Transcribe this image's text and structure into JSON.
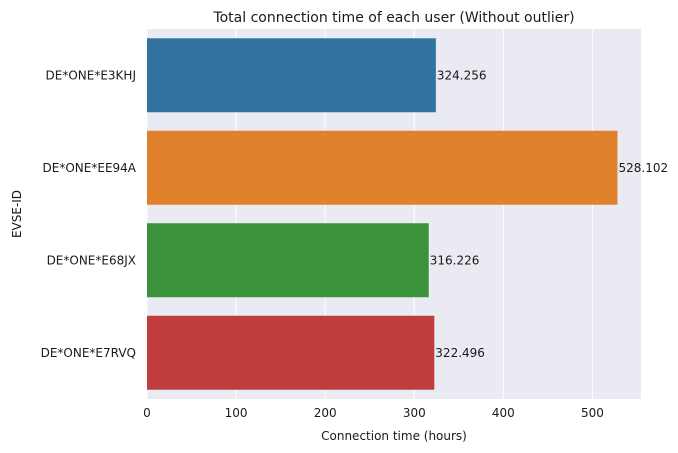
{
  "chart_data": {
    "type": "bar",
    "orientation": "horizontal",
    "title": "Total connection time of each user (Without outlier)",
    "xlabel": "Connection time (hours)",
    "ylabel": "EVSE-ID",
    "categories": [
      "DE*ONE*E3KHJ",
      "DE*ONE*EE94A",
      "DE*ONE*E68JX",
      "DE*ONE*E7RVQ"
    ],
    "values": [
      324.256,
      528.102,
      316.226,
      322.496
    ],
    "data_labels": [
      "324.256",
      "528.102",
      "316.226",
      "322.496"
    ],
    "colors": [
      "#3274a1",
      "#e1812c",
      "#3a923a",
      "#c03d3e"
    ],
    "xlim": [
      0,
      554.5
    ],
    "xticks": [
      0,
      100,
      200,
      300,
      400,
      500
    ],
    "xtick_labels": [
      "0",
      "100",
      "200",
      "300",
      "400",
      "500"
    ],
    "grid": true,
    "background": "#eaeaf2",
    "grid_color": "#ffffff"
  }
}
